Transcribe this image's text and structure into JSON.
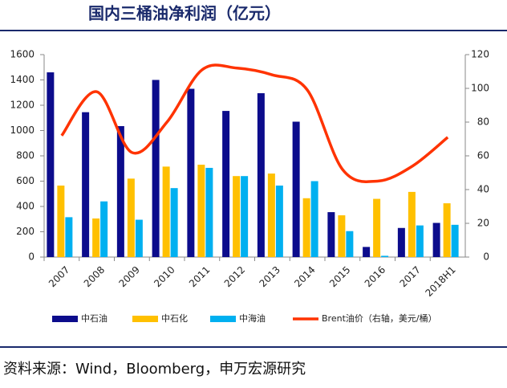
{
  "chart_data": {
    "type": "bar",
    "title": "国内三桶油净利润（亿元）",
    "categories": [
      "2007",
      "2008",
      "2009",
      "2010",
      "2011",
      "2012",
      "2013",
      "2014",
      "2015",
      "2016",
      "2017",
      "2018H1"
    ],
    "series": [
      {
        "name": "中石油",
        "color": "#0c0c8c",
        "type": "bar",
        "values": [
          1460,
          1145,
          1035,
          1400,
          1330,
          1155,
          1295,
          1070,
          355,
          80,
          230,
          270
        ]
      },
      {
        "name": "中石化",
        "color": "#ffc000",
        "type": "bar",
        "values": [
          565,
          305,
          620,
          715,
          730,
          640,
          660,
          465,
          330,
          460,
          515,
          425
        ]
      },
      {
        "name": "中海油",
        "color": "#00b0f0",
        "type": "bar",
        "values": [
          315,
          440,
          295,
          545,
          705,
          640,
          565,
          600,
          205,
          10,
          250,
          255
        ]
      },
      {
        "name": "Brent油价（右轴，美元/桶）",
        "color": "#ff3300",
        "type": "line",
        "axis": "y2",
        "values": [
          72,
          98,
          62,
          80,
          111,
          112,
          108,
          99,
          52,
          45,
          54,
          71
        ]
      }
    ],
    "ylim": [
      0,
      1600
    ],
    "yticks": [
      0,
      200,
      400,
      600,
      800,
      1000,
      1200,
      1400,
      1600
    ],
    "y2lim": [
      0,
      120
    ],
    "y2ticks": [
      0,
      20,
      40,
      60,
      80,
      100,
      120
    ],
    "source": "资料来源：Wind，Bloomberg，申万宏源研究"
  }
}
